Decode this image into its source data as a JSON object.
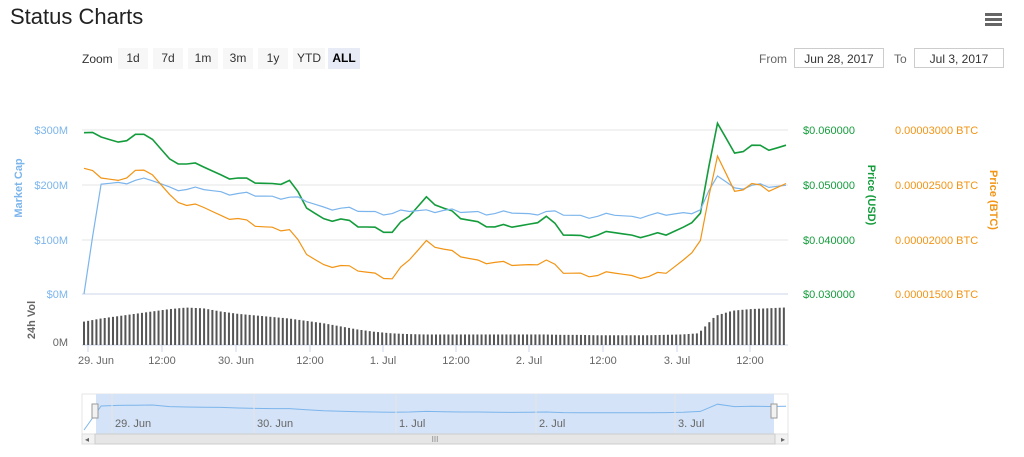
{
  "header": {
    "title": "Status Charts",
    "menu_icon": "hamburger-icon"
  },
  "zoom": {
    "label": "Zoom",
    "buttons": [
      "1d",
      "7d",
      "1m",
      "3m",
      "1y",
      "YTD",
      "ALL"
    ],
    "active": "ALL"
  },
  "range": {
    "from_label": "From",
    "from_value": "Jun 28, 2017",
    "to_label": "To",
    "to_value": "Jul 3, 2017"
  },
  "colors": {
    "market_cap": "#7cb5ec",
    "price_usd": "#149c3c",
    "price_btc": "#f29414",
    "volume": "#555555",
    "navigator_fill": "#d4e3f7"
  },
  "chart_data": {
    "type": "line",
    "x_ticks": [
      "29. Jun",
      "12:00",
      "30. Jun",
      "12:00",
      "1. Jul",
      "12:00",
      "2. Jul",
      "12:00",
      "3. Jul",
      "12:00"
    ],
    "navigator_ticks": [
      "29. Jun",
      "30. Jun",
      "1. Jul",
      "2. Jul",
      "3. Jul"
    ],
    "axes": {
      "market_cap": {
        "label": "Market Cap",
        "ticks": [
          "$300M",
          "$200M",
          "$100M",
          "$0M"
        ],
        "range": [
          0,
          300
        ]
      },
      "price_usd": {
        "label": "Price (USD)",
        "ticks": [
          "$0.060000",
          "$0.050000",
          "$0.040000",
          "$0.030000"
        ],
        "range": [
          0.03,
          0.06
        ]
      },
      "price_btc": {
        "label": "Price (BTC)",
        "ticks": [
          "0.00003000 BTC",
          "0.00002500 BTC",
          "0.00002000 BTC",
          "0.00001500 BTC"
        ],
        "range": [
          1.5e-05,
          3e-05
        ]
      },
      "volume": {
        "label": "24h Vol",
        "ticks": [
          "0M"
        ]
      }
    },
    "x": [
      0,
      3,
      6,
      9,
      12,
      15,
      18,
      21,
      24,
      27,
      30,
      33,
      36,
      39,
      42,
      45,
      48,
      51,
      54,
      57,
      60,
      63,
      66,
      69,
      72,
      75,
      78,
      81,
      84,
      87,
      90,
      93,
      96,
      99,
      102,
      105,
      108,
      111,
      114,
      117,
      120,
      123
    ],
    "series": [
      {
        "key": "price_usd",
        "axis": "price_usd",
        "values": [
          0.0595,
          0.0585,
          0.058,
          0.059,
          0.0585,
          0.0545,
          0.054,
          0.053,
          0.052,
          0.051,
          0.0505,
          0.05,
          0.051,
          0.0455,
          0.044,
          0.0435,
          0.0425,
          0.042,
          0.0415,
          0.044,
          0.048,
          0.0455,
          0.044,
          0.043,
          0.0425,
          0.042,
          0.043,
          0.044,
          0.041,
          0.0405,
          0.041,
          0.041,
          0.041,
          0.0405,
          0.041,
          0.042,
          0.045,
          0.061,
          0.056,
          0.057,
          0.0565,
          0.057
        ]
      },
      {
        "key": "market_cap",
        "axis": "market_cap",
        "values": [
          0,
          200,
          205,
          207,
          208,
          195,
          192,
          190,
          188,
          183,
          180,
          178,
          178,
          168,
          160,
          156,
          152,
          150,
          148,
          150,
          155,
          152,
          150,
          150,
          148,
          147,
          148,
          150,
          145,
          143,
          143,
          143,
          143,
          143,
          145,
          148,
          155,
          215,
          195,
          198,
          196,
          198
        ]
      },
      {
        "key": "price_btc",
        "axis": "price_btc",
        "values": [
          2.65e-05,
          2.55e-05,
          2.55e-05,
          2.62e-05,
          2.6e-05,
          2.4e-05,
          2.32e-05,
          2.28e-05,
          2.23e-05,
          2.18e-05,
          2.13e-05,
          2.1e-05,
          2.1e-05,
          1.85e-05,
          1.78e-05,
          1.75e-05,
          1.72e-05,
          1.68e-05,
          1.65e-05,
          1.8e-05,
          2e-05,
          1.9e-05,
          1.85e-05,
          1.8e-05,
          1.8e-05,
          1.75e-05,
          1.78e-05,
          1.8e-05,
          1.7e-05,
          1.68e-05,
          1.68e-05,
          1.68e-05,
          1.68e-05,
          1.65e-05,
          1.7e-05,
          1.8e-05,
          2e-05,
          2.75e-05,
          2.45e-05,
          2.5e-05,
          2.45e-05,
          2.5e-05
        ]
      }
    ],
    "volume_levels": [
      0.6,
      0.68,
      0.74,
      0.8,
      0.86,
      0.92,
      0.96,
      0.94,
      0.86,
      0.8,
      0.76,
      0.72,
      0.68,
      0.62,
      0.56,
      0.48,
      0.4,
      0.34,
      0.3,
      0.28,
      0.27,
      0.27,
      0.27,
      0.27,
      0.27,
      0.27,
      0.27,
      0.27,
      0.26,
      0.26,
      0.25,
      0.25,
      0.25,
      0.25,
      0.26,
      0.27,
      0.3,
      0.75,
      0.88,
      0.92,
      0.94,
      0.96
    ],
    "navigator_values": [
      0,
      200,
      205,
      207,
      208,
      195,
      192,
      190,
      188,
      183,
      180,
      178,
      178,
      168,
      160,
      156,
      152,
      150,
      148,
      150,
      155,
      152,
      150,
      150,
      148,
      147,
      148,
      150,
      145,
      143,
      143,
      143,
      143,
      143,
      145,
      148,
      155,
      215,
      195,
      198,
      196,
      198
    ]
  }
}
